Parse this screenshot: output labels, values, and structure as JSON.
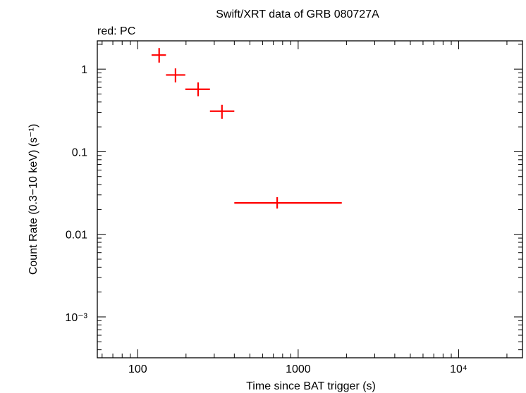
{
  "chart_data": {
    "type": "scatter",
    "title": "Swift/XRT data of GRB 080727A",
    "subtitle": "red: PC",
    "xlabel": "Time since BAT trigger (s)",
    "ylabel": "Count Rate (0.3−10 keV) (s⁻¹)",
    "x_scale": "log",
    "y_scale": "log",
    "xlim": [
      56,
      25000
    ],
    "ylim": [
      0.00032,
      2.2
    ],
    "x_ticks": [
      {
        "value": 100,
        "label": "100"
      },
      {
        "value": 1000,
        "label": "1000"
      },
      {
        "value": 10000,
        "label": "10⁴"
      }
    ],
    "y_ticks": [
      {
        "value": 1,
        "label": "1"
      },
      {
        "value": 0.1,
        "label": "0.1"
      },
      {
        "value": 0.01,
        "label": "0.01"
      },
      {
        "value": 0.001,
        "label": "10⁻³"
      }
    ],
    "grid": false,
    "series": [
      {
        "name": "PC",
        "color": "#ff0000",
        "points": [
          {
            "x": 136,
            "x_lo": 122,
            "x_hi": 150,
            "y": 1.48,
            "y_lo": 1.2,
            "y_hi": 1.8
          },
          {
            "x": 172,
            "x_lo": 150,
            "x_hi": 198,
            "y": 0.85,
            "y_lo": 0.69,
            "y_hi": 1.02
          },
          {
            "x": 238,
            "x_lo": 198,
            "x_hi": 282,
            "y": 0.57,
            "y_lo": 0.47,
            "y_hi": 0.69
          },
          {
            "x": 335,
            "x_lo": 282,
            "x_hi": 400,
            "y": 0.31,
            "y_lo": 0.25,
            "y_hi": 0.37
          },
          {
            "x": 740,
            "x_lo": 400,
            "x_hi": 1870,
            "y": 0.024,
            "y_lo": 0.0205,
            "y_hi": 0.0282
          }
        ]
      }
    ]
  }
}
